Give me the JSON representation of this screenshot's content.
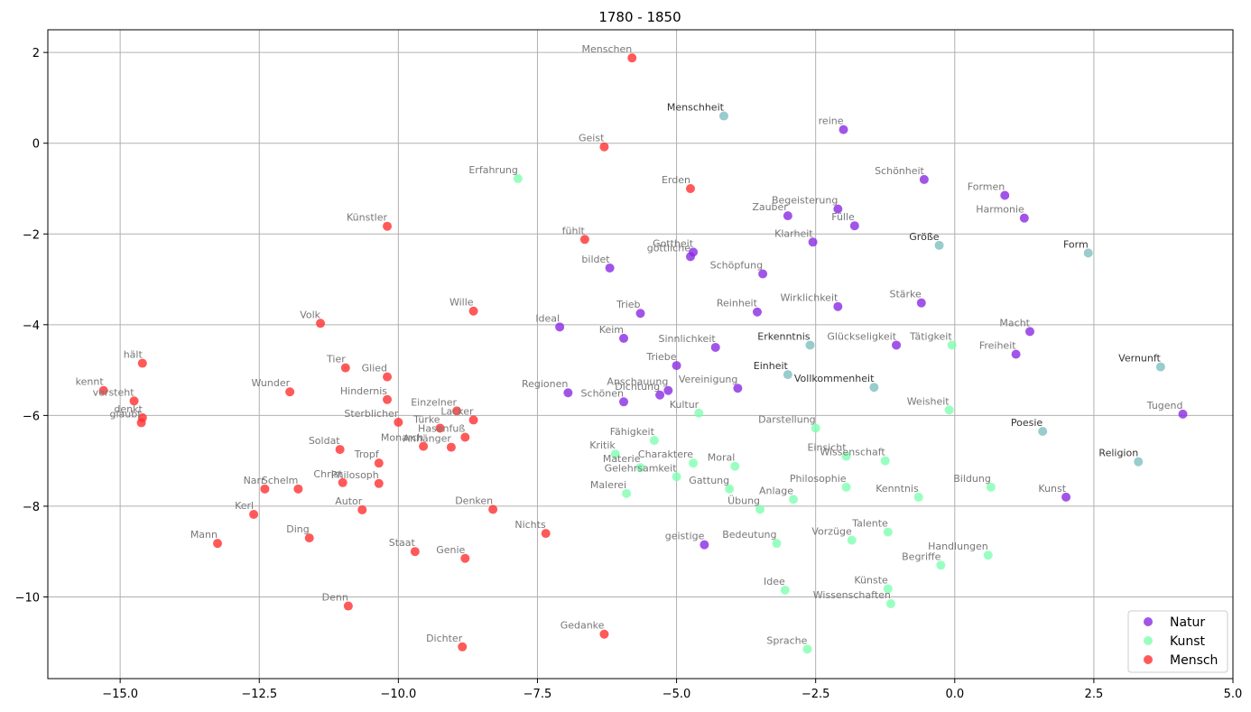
{
  "chart_data": {
    "type": "scatter",
    "title": "1780 - 1850",
    "xlabel": "",
    "ylabel": "",
    "xlim": [
      -16.3,
      5.0
    ],
    "ylim": [
      -11.8,
      2.5
    ],
    "xticks": [
      -15.0,
      -12.5,
      -10.0,
      -7.5,
      -5.0,
      -2.5,
      0.0,
      2.5,
      5.0
    ],
    "xtick_labels": [
      "−15.0",
      "−12.5",
      "−10.0",
      "−7.5",
      "−5.0",
      "−2.5",
      "0.0",
      "2.5",
      "5.0"
    ],
    "yticks": [
      2,
      0,
      -2,
      -4,
      -6,
      -8,
      -10
    ],
    "ytick_labels": [
      "2",
      "0",
      "−2",
      "−4",
      "−6",
      "−8",
      "−10"
    ],
    "grid": true,
    "legend_position": "bottom-right",
    "series": [
      {
        "name": "Natur",
        "color": "#8a2be2",
        "points": [
          {
            "x": -2.0,
            "y": 0.3,
            "label": "reine"
          },
          {
            "x": -0.55,
            "y": -0.8,
            "label": "Schönheit"
          },
          {
            "x": 0.9,
            "y": -1.15,
            "label": "Formen"
          },
          {
            "x": 1.25,
            "y": -1.65,
            "label": "Harmonie"
          },
          {
            "x": -2.1,
            "y": -1.45,
            "label": "Begeisterung"
          },
          {
            "x": -3.0,
            "y": -1.6,
            "label": "Zauber"
          },
          {
            "x": -1.8,
            "y": -1.82,
            "label": "Fülle"
          },
          {
            "x": -2.55,
            "y": -2.18,
            "label": "Klarheit"
          },
          {
            "x": -4.7,
            "y": -2.4,
            "label": "Gottheit"
          },
          {
            "x": -4.75,
            "y": -2.5,
            "label": "göttliche"
          },
          {
            "x": -6.2,
            "y": -2.75,
            "label": "bildet"
          },
          {
            "x": -3.45,
            "y": -2.88,
            "label": "Schöpfung"
          },
          {
            "x": -0.6,
            "y": -3.52,
            "label": "Stärke"
          },
          {
            "x": -2.1,
            "y": -3.6,
            "label": "Wirklichkeit"
          },
          {
            "x": -3.55,
            "y": -3.72,
            "label": "Reinheit"
          },
          {
            "x": -5.65,
            "y": -3.75,
            "label": "Trieb"
          },
          {
            "x": -7.1,
            "y": -4.05,
            "label": "Ideal"
          },
          {
            "x": 1.35,
            "y": -4.15,
            "label": "Macht"
          },
          {
            "x": -5.95,
            "y": -4.3,
            "label": "Keim"
          },
          {
            "x": -4.3,
            "y": -4.5,
            "label": "Sinnlichkeit"
          },
          {
            "x": -1.05,
            "y": -4.45,
            "label": "Glückseligkeit"
          },
          {
            "x": 1.1,
            "y": -4.65,
            "label": "Freiheit"
          },
          {
            "x": -5.0,
            "y": -4.9,
            "label": "Triebe"
          },
          {
            "x": -3.9,
            "y": -5.4,
            "label": "Vereinigung"
          },
          {
            "x": -5.15,
            "y": -5.45,
            "label": "Anschauung"
          },
          {
            "x": -6.95,
            "y": -5.5,
            "label": "Regionen"
          },
          {
            "x": -5.3,
            "y": -5.55,
            "label": "Dichtung"
          },
          {
            "x": -5.95,
            "y": -5.7,
            "label": "Schönen"
          },
          {
            "x": 4.1,
            "y": -5.97,
            "label": "Tugend"
          },
          {
            "x": 2.0,
            "y": -7.8,
            "label": "Kunst"
          },
          {
            "x": -4.5,
            "y": -8.85,
            "label": "geistige"
          }
        ]
      },
      {
        "name": "Kunst",
        "color": "#7fffb0",
        "points": [
          {
            "x": -7.85,
            "y": -0.78,
            "label": "Erfahrung"
          },
          {
            "x": -0.05,
            "y": -4.45,
            "label": "Tätigkeit"
          },
          {
            "x": -0.1,
            "y": -5.88,
            "label": "Weisheit"
          },
          {
            "x": -4.6,
            "y": -5.95,
            "label": "Kultur"
          },
          {
            "x": -2.5,
            "y": -6.28,
            "label": "Darstellung"
          },
          {
            "x": -5.4,
            "y": -6.55,
            "label": "Fähigkeit"
          },
          {
            "x": -6.1,
            "y": -6.85,
            "label": "Kritik"
          },
          {
            "x": -1.95,
            "y": -6.9,
            "label": "Einsicht"
          },
          {
            "x": -1.25,
            "y": -7.0,
            "label": "Wissenschaft"
          },
          {
            "x": -4.7,
            "y": -7.05,
            "label": "Charaktere"
          },
          {
            "x": -3.95,
            "y": -7.12,
            "label": "Moral"
          },
          {
            "x": -5.65,
            "y": -7.15,
            "label": "Materie"
          },
          {
            "x": -5.0,
            "y": -7.35,
            "label": "Gelehrsamkeit"
          },
          {
            "x": -1.95,
            "y": -7.58,
            "label": "Philosophie"
          },
          {
            "x": -4.05,
            "y": -7.62,
            "label": "Gattung"
          },
          {
            "x": 0.65,
            "y": -7.58,
            "label": "Bildung"
          },
          {
            "x": -5.9,
            "y": -7.72,
            "label": "Malerei"
          },
          {
            "x": -0.65,
            "y": -7.8,
            "label": "Kenntnis"
          },
          {
            "x": -2.9,
            "y": -7.85,
            "label": "Anlage"
          },
          {
            "x": -3.5,
            "y": -8.07,
            "label": "Übung"
          },
          {
            "x": -1.2,
            "y": -8.57,
            "label": "Talente"
          },
          {
            "x": -1.85,
            "y": -8.75,
            "label": "Vorzüge"
          },
          {
            "x": -3.2,
            "y": -8.82,
            "label": "Bedeutung"
          },
          {
            "x": 0.6,
            "y": -9.08,
            "label": "Handlungen"
          },
          {
            "x": -0.25,
            "y": -9.3,
            "label": "Begriffe"
          },
          {
            "x": -1.2,
            "y": -9.82,
            "label": "Künste"
          },
          {
            "x": -3.05,
            "y": -9.85,
            "label": "Idee"
          },
          {
            "x": -1.15,
            "y": -10.15,
            "label": "Wissenschaften"
          },
          {
            "x": -2.65,
            "y": -11.15,
            "label": "Sprache"
          }
        ]
      },
      {
        "name": "Mensch",
        "color": "#ff3030",
        "points": [
          {
            "x": -5.8,
            "y": 1.88,
            "label": "Menschen"
          },
          {
            "x": -6.3,
            "y": -0.08,
            "label": "Geist"
          },
          {
            "x": -4.75,
            "y": -1.0,
            "label": "Erden"
          },
          {
            "x": -10.2,
            "y": -1.83,
            "label": "Künstler"
          },
          {
            "x": -6.65,
            "y": -2.12,
            "label": "fühlt"
          },
          {
            "x": -8.65,
            "y": -3.7,
            "label": "Wille"
          },
          {
            "x": -11.4,
            "y": -3.97,
            "label": "Volk"
          },
          {
            "x": -14.6,
            "y": -4.85,
            "label": "hält"
          },
          {
            "x": -10.95,
            "y": -4.95,
            "label": "Tier"
          },
          {
            "x": -10.2,
            "y": -5.15,
            "label": "Glied"
          },
          {
            "x": -15.3,
            "y": -5.45,
            "label": "kennt"
          },
          {
            "x": -11.95,
            "y": -5.48,
            "label": "Wunder"
          },
          {
            "x": -10.2,
            "y": -5.65,
            "label": "Hindernis"
          },
          {
            "x": -14.75,
            "y": -5.68,
            "label": "versteht"
          },
          {
            "x": -8.95,
            "y": -5.9,
            "label": "Einzelner"
          },
          {
            "x": -14.6,
            "y": -6.05,
            "label": "denkt"
          },
          {
            "x": -8.65,
            "y": -6.1,
            "label": "Lacker"
          },
          {
            "x": -14.62,
            "y": -6.16,
            "label": "glaubt"
          },
          {
            "x": -10.0,
            "y": -6.15,
            "label": "Sterblicher"
          },
          {
            "x": -9.25,
            "y": -6.28,
            "label": "Türke"
          },
          {
            "x": -8.8,
            "y": -6.48,
            "label": "Hasenfuß"
          },
          {
            "x": -9.55,
            "y": -6.68,
            "label": "Monarch"
          },
          {
            "x": -9.05,
            "y": -6.7,
            "label": "Anhänger"
          },
          {
            "x": -11.05,
            "y": -6.75,
            "label": "Soldat"
          },
          {
            "x": -10.35,
            "y": -7.05,
            "label": "Tropf"
          },
          {
            "x": -11.0,
            "y": -7.48,
            "label": "Christ"
          },
          {
            "x": -10.35,
            "y": -7.5,
            "label": "Philosoph"
          },
          {
            "x": -12.4,
            "y": -7.62,
            "label": "Narr"
          },
          {
            "x": -11.8,
            "y": -7.62,
            "label": "Schelm"
          },
          {
            "x": -8.3,
            "y": -8.07,
            "label": "Denken"
          },
          {
            "x": -10.65,
            "y": -8.08,
            "label": "Autor"
          },
          {
            "x": -12.6,
            "y": -8.18,
            "label": "Kerl"
          },
          {
            "x": -7.35,
            "y": -8.6,
            "label": "Nichts"
          },
          {
            "x": -11.6,
            "y": -8.7,
            "label": "Ding"
          },
          {
            "x": -13.25,
            "y": -8.82,
            "label": "Mann"
          },
          {
            "x": -9.7,
            "y": -9.0,
            "label": "Staat"
          },
          {
            "x": -8.8,
            "y": -9.15,
            "label": "Genie"
          },
          {
            "x": -10.9,
            "y": -10.2,
            "label": "Denn"
          },
          {
            "x": -6.3,
            "y": -10.82,
            "label": "Gedanke"
          },
          {
            "x": -8.85,
            "y": -11.1,
            "label": "Dichter"
          }
        ]
      },
      {
        "name": "",
        "color": "#7fbfbf",
        "highlight": true,
        "points": [
          {
            "x": -4.15,
            "y": 0.6,
            "label": "Menschheit"
          },
          {
            "x": -0.28,
            "y": -2.25,
            "label": "Größe"
          },
          {
            "x": 2.4,
            "y": -2.42,
            "label": "Form"
          },
          {
            "x": -2.6,
            "y": -4.45,
            "label": "Erkenntnis"
          },
          {
            "x": -3.0,
            "y": -5.1,
            "label": "Einheit"
          },
          {
            "x": -1.45,
            "y": -5.38,
            "label": "Vollkommenheit"
          },
          {
            "x": 3.7,
            "y": -4.93,
            "label": "Vernunft"
          },
          {
            "x": 1.58,
            "y": -6.35,
            "label": "Poesie"
          },
          {
            "x": 3.3,
            "y": -7.02,
            "label": "Religion"
          }
        ]
      }
    ],
    "legend": [
      {
        "label": "Natur",
        "color": "#8a2be2"
      },
      {
        "label": "Kunst",
        "color": "#7fffb0"
      },
      {
        "label": "Mensch",
        "color": "#ff3030"
      }
    ]
  }
}
